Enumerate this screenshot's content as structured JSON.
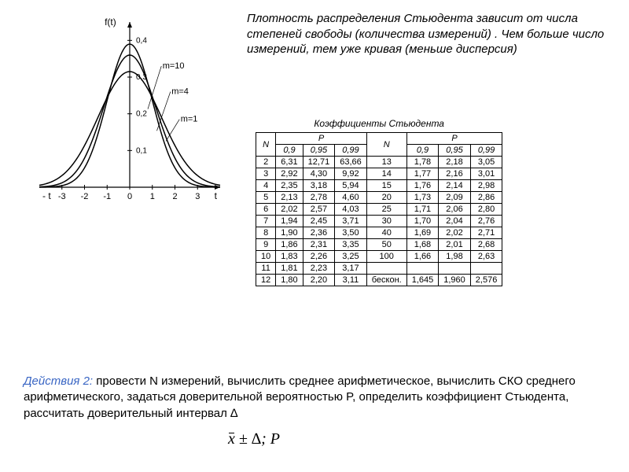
{
  "para1": "Плотность распределения Стьюдента зависит от числа степеней свободы (количества измерений) . Чем больше число измерений, тем уже кривая (меньше дисперсия)",
  "chart": {
    "ylabel": "f(t)",
    "xlabel": "t",
    "xlim": [
      -4,
      4
    ],
    "ylim": [
      0,
      0.45
    ],
    "xticks": [
      -3,
      -2,
      -1,
      0,
      1,
      2,
      3
    ],
    "yticks": [
      0.1,
      0.2,
      0.3,
      0.4
    ],
    "ytick_labels": [
      "0,1",
      "0,2",
      "0,3",
      "0,4"
    ],
    "neg_t_label": "- t",
    "pos_t_label": "t",
    "background_color": "#ffffff",
    "axis_color": "#000000",
    "line_color": "#000000",
    "line_width": 1.5,
    "series": [
      {
        "label": "m=10",
        "peak": 0.39,
        "spread": 1.0,
        "label_x": 1.1,
        "label_y": 0.33
      },
      {
        "label": "m=4",
        "peak": 0.36,
        "spread": 1.15,
        "label_x": 1.5,
        "label_y": 0.26
      },
      {
        "label": "m=1",
        "peak": 0.315,
        "spread": 1.4,
        "label_x": 1.9,
        "label_y": 0.185
      }
    ]
  },
  "table": {
    "title": "Коэффициенты Стьюдента",
    "header_N": "N",
    "header_P": "P",
    "p_values": [
      "0,9",
      "0,95",
      "0,99"
    ],
    "inf_label": "бескон.",
    "left": [
      {
        "n": "2",
        "v": [
          "6,31",
          "12,71",
          "63,66"
        ]
      },
      {
        "n": "3",
        "v": [
          "2,92",
          "4,30",
          "9,92"
        ]
      },
      {
        "n": "4",
        "v": [
          "2,35",
          "3,18",
          "5,94"
        ]
      },
      {
        "n": "5",
        "v": [
          "2,13",
          "2,78",
          "4,60"
        ]
      },
      {
        "n": "6",
        "v": [
          "2,02",
          "2,57",
          "4,03"
        ]
      },
      {
        "n": "7",
        "v": [
          "1,94",
          "2,45",
          "3,71"
        ]
      },
      {
        "n": "8",
        "v": [
          "1,90",
          "2,36",
          "3,50"
        ]
      },
      {
        "n": "9",
        "v": [
          "1,86",
          "2,31",
          "3,35"
        ]
      },
      {
        "n": "10",
        "v": [
          "1,83",
          "2,26",
          "3,25"
        ]
      },
      {
        "n": "11",
        "v": [
          "1,81",
          "2,23",
          "3,17"
        ]
      },
      {
        "n": "12",
        "v": [
          "1,80",
          "2,20",
          "3,11"
        ]
      }
    ],
    "right": [
      {
        "n": "13",
        "v": [
          "1,78",
          "2,18",
          "3,05"
        ]
      },
      {
        "n": "14",
        "v": [
          "1,77",
          "2,16",
          "3,01"
        ]
      },
      {
        "n": "15",
        "v": [
          "1,76",
          "2,14",
          "2,98"
        ]
      },
      {
        "n": "20",
        "v": [
          "1,73",
          "2,09",
          "2,86"
        ]
      },
      {
        "n": "25",
        "v": [
          "1,71",
          "2,06",
          "2,80"
        ]
      },
      {
        "n": "30",
        "v": [
          "1,70",
          "2,04",
          "2,76"
        ]
      },
      {
        "n": "40",
        "v": [
          "1,69",
          "2,02",
          "2,71"
        ]
      },
      {
        "n": "50",
        "v": [
          "1,68",
          "2,01",
          "2,68"
        ]
      },
      {
        "n": "100",
        "v": [
          "1,66",
          "1,98",
          "2,63"
        ]
      },
      {
        "n": "",
        "v": [
          "",
          "",
          ""
        ]
      },
      {
        "n": "бескон.",
        "v": [
          "1,645",
          "1,960",
          "2,576"
        ]
      }
    ]
  },
  "actions": {
    "label": "Действия 2:",
    "text": " провести N измерений, вычислить среднее арифметическое, вычислить СКО среднего арифметического, задаться доверительной вероятностью P, определить коэффициент Стьюдента, рассчитать доверительный интервал ∆"
  },
  "formula": {
    "x": "x",
    "pm": " ± ∆; ",
    "p": "P"
  }
}
